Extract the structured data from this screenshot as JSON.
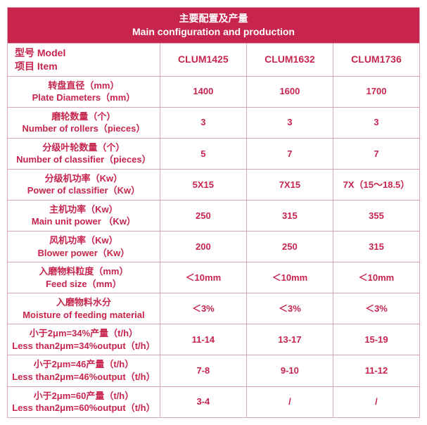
{
  "header": {
    "title_cn": "主要配置及产量",
    "title_en": "Main configuration and production"
  },
  "columns": {
    "item_cn": "型号  Model",
    "item_en": "项目 Item",
    "m1": "CLUM1425",
    "m2": "CLUM1632",
    "m3": "CLUM1736"
  },
  "rows": [
    {
      "cn": "转盘直径（mm）",
      "en": "Plate Diameters（mm）",
      "v1": "1400",
      "v2": "1600",
      "v3": "1700"
    },
    {
      "cn": "磨轮数量（个）",
      "en": "Number of rollers（pieces）",
      "v1": "3",
      "v2": "3",
      "v3": "3"
    },
    {
      "cn": "分级叶轮数量（个）",
      "en": "Number of classifier（pieces）",
      "v1": "5",
      "v2": "7",
      "v3": "7"
    },
    {
      "cn": "分级机功率（Kw）",
      "en": "Power of classifier（Kw）",
      "v1": "5X15",
      "v2": "7X15",
      "v3": "7X（15～18.5）"
    },
    {
      "cn": "主机功率（Kw）",
      "en": "Main unit power （Kw）",
      "v1": "250",
      "v2": "315",
      "v3": "355"
    },
    {
      "cn": "风机功率（Kw）",
      "en": "Blower power（Kw）",
      "v1": "200",
      "v2": "250",
      "v3": "315"
    },
    {
      "cn": "入磨物料粒度（mm）",
      "en": "Feed size（mm）",
      "v1": "＜10mm",
      "v2": "＜10mm",
      "v3": "＜10mm"
    },
    {
      "cn": "入磨物料水分",
      "en": "Moisture of feeding material",
      "v1": "＜3%",
      "v2": "＜3%",
      "v3": "＜3%"
    },
    {
      "cn": "小于2μm=34%产量（t/h）",
      "en": "Less than2μm=34%output（t/h）",
      "v1": "11-14",
      "v2": "13-17",
      "v3": "15-19"
    },
    {
      "cn": "小于2μm=46产量（t/h）",
      "en": "Less than2μm=46%output（t/h）",
      "v1": "7-8",
      "v2": "9-10",
      "v3": "11-12"
    },
    {
      "cn": "小于2μm=60产量（t/h）",
      "en": "Less than2μm=60%output（t/h）",
      "v1": "3-4",
      "v2": "/",
      "v3": "/"
    }
  ],
  "style": {
    "header_bg": "#c7254e",
    "header_fg": "#ffffff",
    "accent_fg": "#c7254e",
    "border_color": "#d9a6b8",
    "font_size_body": 13,
    "font_size_header": 14
  }
}
